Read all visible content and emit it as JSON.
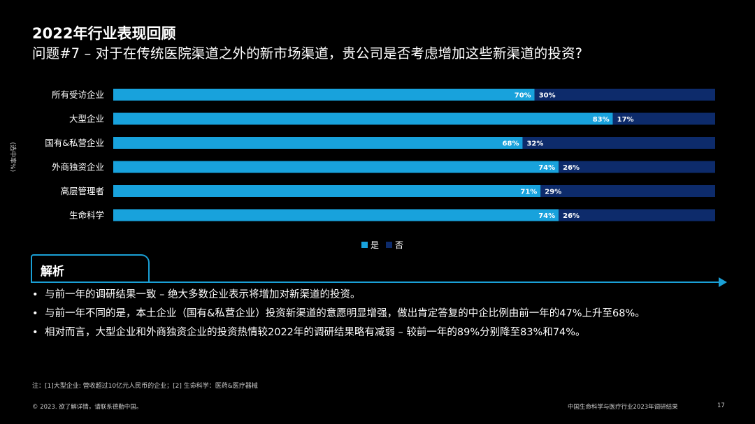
{
  "slide": {
    "title": "2022年行业表现回顾",
    "subtitle": "问题#7 – 对于在传统医院渠道之外的新市场渠道，贵公司是否考虑增加这些新渠道的投资?"
  },
  "colors": {
    "yes": "#18a2dc",
    "no": "#0d2b6b",
    "accent": "#1aa0d6"
  },
  "chart_data": {
    "type": "bar",
    "orientation": "horizontal",
    "stacked": true,
    "ylabel": "(选中率%)",
    "categories": [
      "所有受访企业",
      "大型企业",
      "国有&私营企业",
      "外商独资企业",
      "高层管理者",
      "生命科学"
    ],
    "series": [
      {
        "name": "是",
        "values": [
          70,
          83,
          68,
          74,
          71,
          74
        ],
        "labels": [
          "70%",
          "83%",
          "68%",
          "74%",
          "71%",
          "74%"
        ]
      },
      {
        "name": "否",
        "values": [
          30,
          17,
          32,
          26,
          29,
          26
        ],
        "labels": [
          "30%",
          "17%",
          "32%",
          "26%",
          "29%",
          "26%"
        ]
      }
    ],
    "xlim": [
      0,
      100
    ],
    "grid": false,
    "legend": "bottom-center"
  },
  "analysis": {
    "tab_label": "解析",
    "bullets": [
      "与前一年的调研结果一致 – 绝大多数企业表示将增加对新渠道的投资。",
      "与前一年不同的是，本土企业（国有&私营企业）投资新渠道的意愿明显增强，做出肯定答复的中企比例由前一年的47%上升至68%。",
      "相对而言，大型企业和外商独资企业的投资热情较2022年的调研结果略有减弱 – 较前一年的89%分别降至83%和74%。"
    ]
  },
  "footer": {
    "note": "注：[1]大型企业: 营收超过10亿元人民币的企业；[2] 生命科学：医药&医疗器械",
    "copyright": "© 2023. 欲了解详情，请联系德勤中国。",
    "report_title": "中国生命科学与医疗行业2023年调研结果",
    "page_number": "17"
  }
}
